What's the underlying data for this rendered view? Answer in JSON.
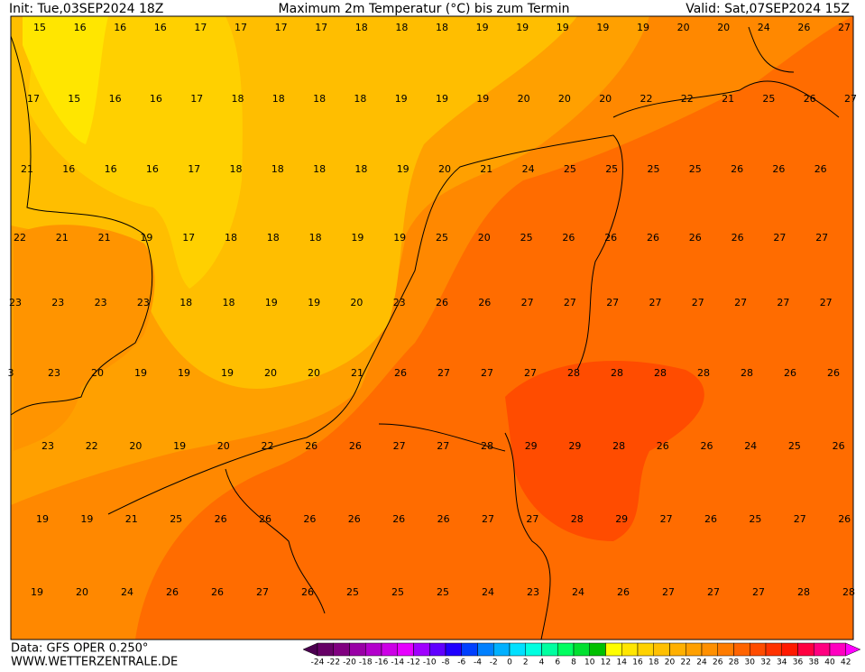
{
  "header": {
    "init": "Init: Tue,03SEP2024 18Z",
    "title": "Maximum 2m Temperatur (°C) bis zum Termin",
    "valid": "Valid: Sat,07SEP2024 15Z"
  },
  "map": {
    "rows": [
      [
        15,
        16,
        16,
        16,
        17,
        17,
        17,
        17,
        18,
        18,
        18,
        19,
        19,
        19,
        19,
        19,
        20,
        20,
        24,
        26,
        27
      ],
      [
        17,
        15,
        16,
        16,
        17,
        18,
        18,
        18,
        18,
        19,
        19,
        19,
        20,
        20,
        20,
        22,
        22,
        21,
        25,
        26,
        27
      ],
      [
        21,
        16,
        16,
        16,
        17,
        18,
        18,
        18,
        18,
        19,
        20,
        21,
        24,
        25,
        25,
        25,
        25,
        26,
        26,
        26
      ],
      [
        22,
        21,
        21,
        19,
        17,
        18,
        18,
        18,
        19,
        19,
        25,
        20,
        25,
        26,
        26,
        26,
        26,
        26,
        27,
        27
      ],
      [
        23,
        23,
        23,
        23,
        18,
        18,
        19,
        19,
        20,
        23,
        26,
        26,
        27,
        27,
        27,
        27,
        27,
        27,
        27,
        27
      ],
      [
        3,
        23,
        20,
        19,
        19,
        19,
        20,
        20,
        21,
        26,
        27,
        27,
        27,
        28,
        28,
        28,
        28,
        28,
        26,
        26
      ],
      [
        23,
        22,
        20,
        19,
        20,
        22,
        26,
        26,
        27,
        27,
        28,
        29,
        29,
        28,
        26,
        26,
        24,
        25,
        26
      ],
      [
        19,
        19,
        21,
        25,
        26,
        26,
        26,
        26,
        26,
        26,
        27,
        27,
        28,
        29,
        27,
        26,
        25,
        27,
        26
      ],
      [
        19,
        20,
        24,
        26,
        26,
        27,
        26,
        25,
        25,
        25,
        24,
        23,
        24,
        26,
        27,
        27,
        27,
        28,
        28
      ]
    ]
  },
  "footer": {
    "data": "Data: GFS OPER 0.250°",
    "site": "WWW.WETTERZENTRALE.DE"
  },
  "colorbar": {
    "ticks": [
      -24,
      -22,
      -20,
      -18,
      -16,
      -14,
      -12,
      -10,
      -8,
      -6,
      -4,
      -2,
      0,
      2,
      4,
      6,
      8,
      10,
      12,
      14,
      16,
      18,
      20,
      22,
      24,
      26,
      28,
      30,
      32,
      34,
      36,
      38,
      40,
      42
    ],
    "colors": [
      "#4b0050",
      "#660066",
      "#800080",
      "#9900a6",
      "#b300cc",
      "#cc00e6",
      "#e600ff",
      "#a000ff",
      "#6000ff",
      "#2000ff",
      "#0040ff",
      "#0080ff",
      "#00b0ff",
      "#00e0ff",
      "#00ffe0",
      "#00ffa0",
      "#00ff60",
      "#00e030",
      "#00c000",
      "#ffff00",
      "#ffe600",
      "#ffd200",
      "#ffc000",
      "#ffb000",
      "#ffa000",
      "#ff9000",
      "#ff7c00",
      "#ff6400",
      "#ff4c00",
      "#ff3200",
      "#ff1a00",
      "#ff0040",
      "#ff0080",
      "#ff00c0",
      "#ff00ff"
    ]
  }
}
